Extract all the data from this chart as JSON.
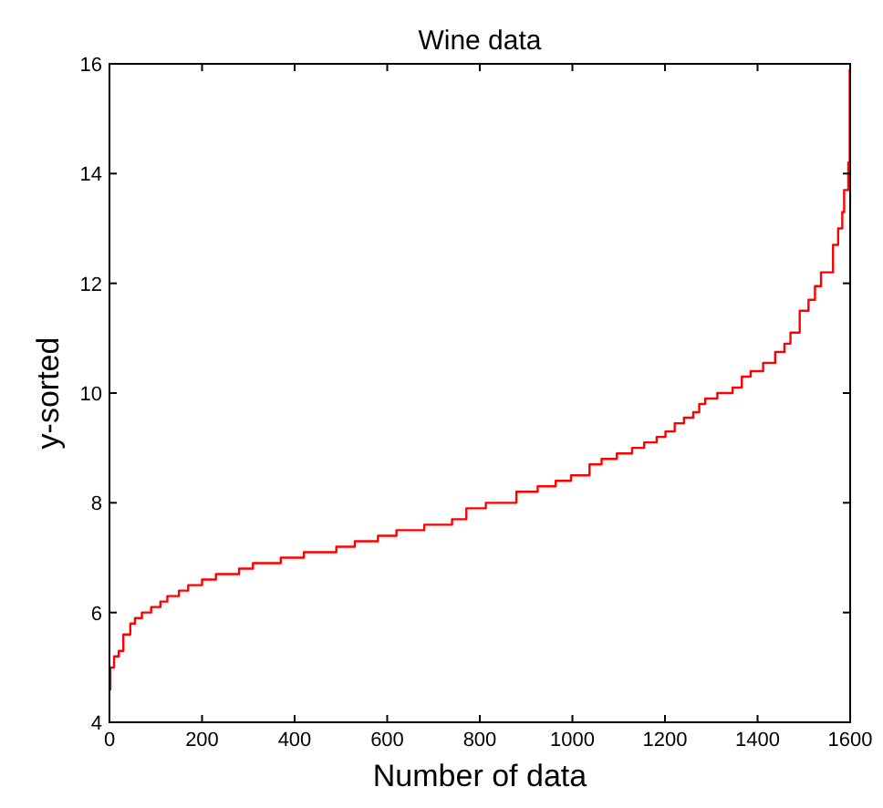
{
  "chart_data": {
    "type": "step",
    "title": "Wine data",
    "xlabel": "Number of data",
    "ylabel": "y-sorted",
    "xlim": [
      0,
      1600
    ],
    "xticks": [
      0,
      200,
      400,
      600,
      800,
      1000,
      1200,
      1400,
      1600
    ],
    "ylim": [
      4,
      16
    ],
    "yticks": [
      4,
      6,
      8,
      10,
      12,
      14,
      16
    ],
    "grid": false,
    "marker": "none",
    "line_style": "solid",
    "series": [
      {
        "color": "#ff0000",
        "x": [
          0,
          2,
          10,
          20,
          30,
          45,
          55,
          70,
          90,
          110,
          125,
          150,
          170,
          200,
          230,
          280,
          310,
          370,
          420,
          490,
          530,
          580,
          620,
          680,
          740,
          771,
          813,
          879,
          925,
          964,
          997,
          1037,
          1063,
          1096,
          1129,
          1155,
          1182,
          1201,
          1221,
          1241,
          1261,
          1274,
          1287,
          1313,
          1346,
          1366,
          1385,
          1412,
          1438,
          1458,
          1471,
          1491,
          1510,
          1524,
          1537,
          1563,
          1574,
          1583,
          1587,
          1596,
          1599
        ],
        "values": [
          4.6,
          5.0,
          5.2,
          5.3,
          5.6,
          5.8,
          5.9,
          6.0,
          6.1,
          6.2,
          6.3,
          6.4,
          6.5,
          6.6,
          6.7,
          6.8,
          6.9,
          7.0,
          7.1,
          7.2,
          7.3,
          7.4,
          7.5,
          7.6,
          7.7,
          7.9,
          8.0,
          8.2,
          8.3,
          8.4,
          8.5,
          8.7,
          8.8,
          8.9,
          9.0,
          9.1,
          9.2,
          9.3,
          9.45,
          9.55,
          9.65,
          9.8,
          9.9,
          10.0,
          10.1,
          10.3,
          10.4,
          10.55,
          10.75,
          10.9,
          11.1,
          11.5,
          11.7,
          11.95,
          12.2,
          12.7,
          13.0,
          13.3,
          13.7,
          14.2,
          15.9
        ]
      }
    ]
  }
}
